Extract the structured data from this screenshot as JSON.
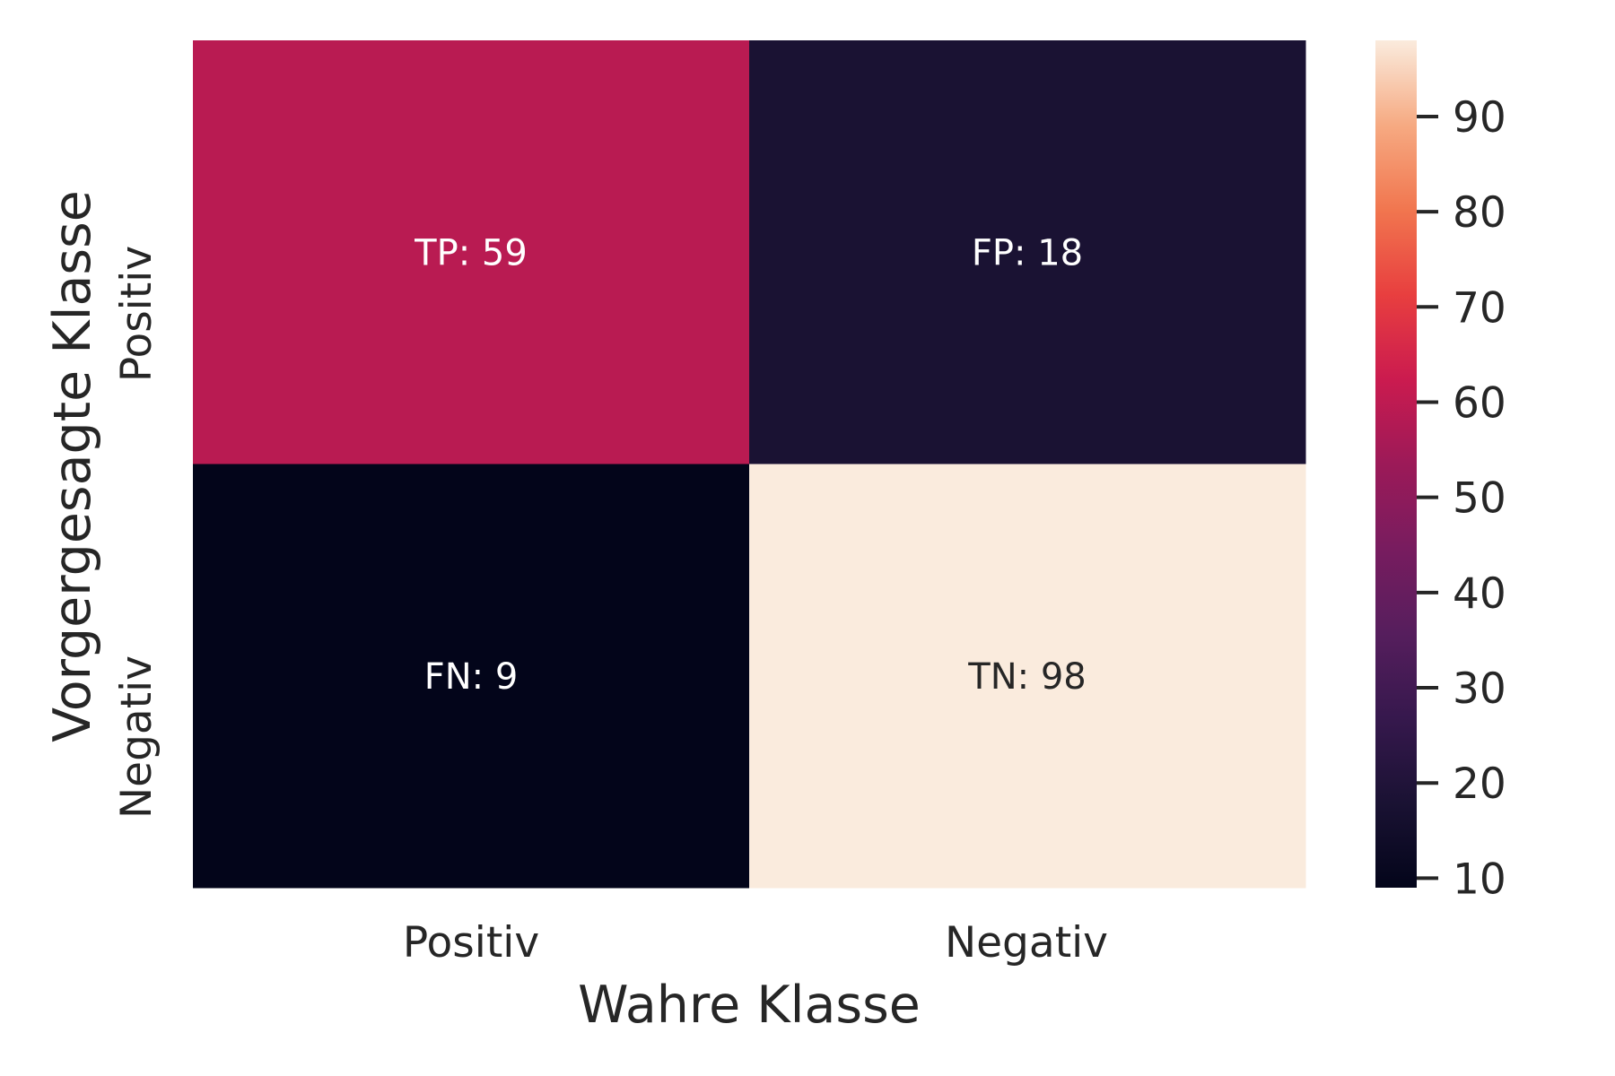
{
  "chart_data": {
    "type": "heatmap",
    "xlabel": "Wahre Klasse",
    "ylabel": "Vorgergesagte Klasse",
    "x_categories": [
      "Positiv",
      "Negativ"
    ],
    "y_categories": [
      "Positiv",
      "Negativ"
    ],
    "values": [
      [
        59,
        18
      ],
      [
        9,
        98
      ]
    ],
    "annotations": [
      [
        "TP: 59",
        "FP: 18"
      ],
      [
        "FN: 9",
        "TN: 98"
      ]
    ],
    "colorbar": {
      "colormap": "rocket",
      "range": [
        9,
        98
      ],
      "ticks": [
        "10",
        "20",
        "30",
        "40",
        "50",
        "60",
        "70",
        "80",
        "90"
      ]
    }
  }
}
